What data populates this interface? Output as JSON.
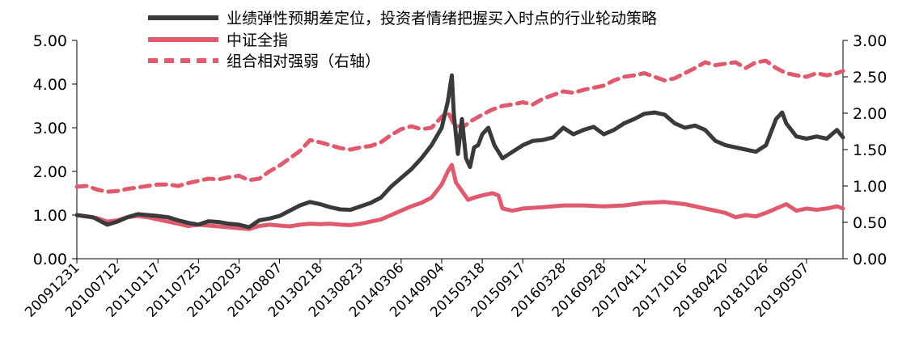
{
  "chart_data": {
    "type": "line",
    "title": "",
    "xlabel": "",
    "ylabel": "",
    "ylim": [
      0,
      5
    ],
    "y2lim": [
      0,
      3
    ],
    "yticks": [
      "0.00",
      "1.00",
      "2.00",
      "3.00",
      "4.00",
      "5.00"
    ],
    "y2ticks": [
      "0.00",
      "0.50",
      "1.00",
      "1.50",
      "2.00",
      "2.50",
      "3.00"
    ],
    "x_labels": [
      "20091231",
      "20100712",
      "20110117",
      "20110725",
      "20120203",
      "20120807",
      "20130218",
      "20130823",
      "20140306",
      "20140904",
      "20150318",
      "20150917",
      "20160328",
      "20160928",
      "20170411",
      "20171016",
      "20180420",
      "20181026",
      "20190507"
    ],
    "legend_position": "top",
    "series": [
      {
        "name": "业绩弹性预期差定位，投资者情绪把握买入时点的行业轮动策略",
        "axis": "left",
        "color": "#3a3a3a",
        "style": "solid",
        "values": [
          [
            0,
            1.0
          ],
          [
            0.8,
            0.95
          ],
          [
            1.5,
            0.78
          ],
          [
            2,
            0.85
          ],
          [
            2.5,
            0.95
          ],
          [
            3,
            1.02
          ],
          [
            3.5,
            1.0
          ],
          [
            4,
            0.98
          ],
          [
            4.5,
            0.95
          ],
          [
            5,
            0.88
          ],
          [
            5.5,
            0.82
          ],
          [
            6,
            0.78
          ],
          [
            6.5,
            0.86
          ],
          [
            7,
            0.84
          ],
          [
            7.5,
            0.8
          ],
          [
            8,
            0.78
          ],
          [
            8.5,
            0.72
          ],
          [
            9,
            0.88
          ],
          [
            9.5,
            0.92
          ],
          [
            10,
            0.98
          ],
          [
            10.5,
            1.1
          ],
          [
            11,
            1.22
          ],
          [
            11.5,
            1.3
          ],
          [
            12,
            1.25
          ],
          [
            12.5,
            1.18
          ],
          [
            13,
            1.13
          ],
          [
            13.5,
            1.12
          ],
          [
            14,
            1.2
          ],
          [
            14.5,
            1.28
          ],
          [
            15,
            1.4
          ],
          [
            15.5,
            1.65
          ],
          [
            16,
            1.85
          ],
          [
            16.5,
            2.05
          ],
          [
            17,
            2.3
          ],
          [
            17.5,
            2.6
          ],
          [
            18,
            3.0
          ],
          [
            18.3,
            3.6
          ],
          [
            18.5,
            4.2
          ],
          [
            18.6,
            3.3
          ],
          [
            18.8,
            2.4
          ],
          [
            19,
            3.2
          ],
          [
            19.2,
            2.3
          ],
          [
            19.4,
            2.1
          ],
          [
            19.6,
            2.55
          ],
          [
            19.8,
            2.6
          ],
          [
            20,
            2.85
          ],
          [
            20.3,
            3.0
          ],
          [
            20.6,
            2.6
          ],
          [
            21,
            2.3
          ],
          [
            21.5,
            2.45
          ],
          [
            22,
            2.6
          ],
          [
            22.5,
            2.7
          ],
          [
            23,
            2.72
          ],
          [
            23.5,
            2.78
          ],
          [
            24,
            3.0
          ],
          [
            24.5,
            2.85
          ],
          [
            25,
            2.95
          ],
          [
            25.5,
            3.02
          ],
          [
            26,
            2.85
          ],
          [
            26.5,
            2.95
          ],
          [
            27,
            3.1
          ],
          [
            27.5,
            3.2
          ],
          [
            28,
            3.32
          ],
          [
            28.5,
            3.35
          ],
          [
            29,
            3.3
          ],
          [
            29.5,
            3.1
          ],
          [
            30,
            3.0
          ],
          [
            30.5,
            3.05
          ],
          [
            31,
            2.95
          ],
          [
            31.5,
            2.7
          ],
          [
            32,
            2.6
          ],
          [
            32.5,
            2.55
          ],
          [
            33,
            2.5
          ],
          [
            33.5,
            2.45
          ],
          [
            34,
            2.6
          ],
          [
            34.5,
            3.2
          ],
          [
            34.8,
            3.35
          ],
          [
            35,
            3.1
          ],
          [
            35.5,
            2.8
          ],
          [
            36,
            2.75
          ],
          [
            36.5,
            2.8
          ],
          [
            37,
            2.75
          ],
          [
            37.5,
            2.95
          ],
          [
            37.8,
            2.78
          ]
        ]
      },
      {
        "name": "中证全指",
        "axis": "left",
        "color": "#e05a6e",
        "style": "solid",
        "values": [
          [
            0,
            1.0
          ],
          [
            1,
            0.93
          ],
          [
            1.5,
            0.85
          ],
          [
            2,
            0.88
          ],
          [
            2.5,
            0.95
          ],
          [
            3,
            0.98
          ],
          [
            3.5,
            0.95
          ],
          [
            4,
            0.9
          ],
          [
            4.5,
            0.85
          ],
          [
            5,
            0.8
          ],
          [
            5.5,
            0.75
          ],
          [
            6,
            0.78
          ],
          [
            6.5,
            0.76
          ],
          [
            7,
            0.74
          ],
          [
            7.5,
            0.72
          ],
          [
            8,
            0.7
          ],
          [
            8.5,
            0.68
          ],
          [
            9,
            0.75
          ],
          [
            9.5,
            0.78
          ],
          [
            10,
            0.76
          ],
          [
            10.5,
            0.74
          ],
          [
            11,
            0.78
          ],
          [
            11.5,
            0.8
          ],
          [
            12,
            0.79
          ],
          [
            12.5,
            0.8
          ],
          [
            13,
            0.78
          ],
          [
            13.5,
            0.77
          ],
          [
            14,
            0.8
          ],
          [
            14.5,
            0.85
          ],
          [
            15,
            0.9
          ],
          [
            15.5,
            1.0
          ],
          [
            16,
            1.1
          ],
          [
            16.5,
            1.2
          ],
          [
            17,
            1.28
          ],
          [
            17.5,
            1.4
          ],
          [
            18,
            1.7
          ],
          [
            18.3,
            2.0
          ],
          [
            18.5,
            2.15
          ],
          [
            18.7,
            1.75
          ],
          [
            19,
            1.55
          ],
          [
            19.3,
            1.35
          ],
          [
            19.6,
            1.4
          ],
          [
            20,
            1.45
          ],
          [
            20.5,
            1.5
          ],
          [
            20.8,
            1.45
          ],
          [
            21,
            1.15
          ],
          [
            21.5,
            1.1
          ],
          [
            22,
            1.15
          ],
          [
            23,
            1.18
          ],
          [
            24,
            1.22
          ],
          [
            25,
            1.22
          ],
          [
            26,
            1.2
          ],
          [
            27,
            1.22
          ],
          [
            28,
            1.28
          ],
          [
            29,
            1.3
          ],
          [
            30,
            1.25
          ],
          [
            31,
            1.15
          ],
          [
            32,
            1.05
          ],
          [
            32.5,
            0.95
          ],
          [
            33,
            1.0
          ],
          [
            33.5,
            0.97
          ],
          [
            34,
            1.05
          ],
          [
            34.5,
            1.15
          ],
          [
            35,
            1.25
          ],
          [
            35.5,
            1.1
          ],
          [
            36,
            1.15
          ],
          [
            36.5,
            1.12
          ],
          [
            37,
            1.15
          ],
          [
            37.5,
            1.2
          ],
          [
            37.8,
            1.15
          ]
        ]
      },
      {
        "name": "组合相对强弱（右轴）",
        "axis": "right",
        "color": "#e05a6e",
        "style": "dashed",
        "values": [
          [
            0,
            0.99
          ],
          [
            0.5,
            1.0
          ],
          [
            1,
            0.95
          ],
          [
            1.5,
            0.92
          ],
          [
            2,
            0.93
          ],
          [
            2.5,
            0.96
          ],
          [
            3,
            0.98
          ],
          [
            3.5,
            1.0
          ],
          [
            4,
            1.02
          ],
          [
            4.5,
            1.02
          ],
          [
            5,
            1.0
          ],
          [
            5.5,
            1.04
          ],
          [
            6,
            1.07
          ],
          [
            6.5,
            1.1
          ],
          [
            7,
            1.09
          ],
          [
            7.5,
            1.12
          ],
          [
            8,
            1.14
          ],
          [
            8.5,
            1.08
          ],
          [
            9,
            1.1
          ],
          [
            9.5,
            1.2
          ],
          [
            10,
            1.28
          ],
          [
            10.5,
            1.38
          ],
          [
            11,
            1.48
          ],
          [
            11.5,
            1.63
          ],
          [
            12,
            1.6
          ],
          [
            12.5,
            1.56
          ],
          [
            13,
            1.52
          ],
          [
            13.5,
            1.5
          ],
          [
            14,
            1.53
          ],
          [
            14.5,
            1.55
          ],
          [
            15,
            1.6
          ],
          [
            15.5,
            1.7
          ],
          [
            16,
            1.78
          ],
          [
            16.5,
            1.82
          ],
          [
            17,
            1.78
          ],
          [
            17.5,
            1.8
          ],
          [
            18,
            1.95
          ],
          [
            18.3,
            2.02
          ],
          [
            18.6,
            1.85
          ],
          [
            19,
            1.8
          ],
          [
            19.5,
            1.9
          ],
          [
            20,
            1.98
          ],
          [
            20.5,
            2.05
          ],
          [
            21,
            2.1
          ],
          [
            21.5,
            2.12
          ],
          [
            22,
            2.15
          ],
          [
            22.5,
            2.12
          ],
          [
            23,
            2.2
          ],
          [
            23.5,
            2.25
          ],
          [
            24,
            2.3
          ],
          [
            24.5,
            2.28
          ],
          [
            25,
            2.32
          ],
          [
            25.5,
            2.35
          ],
          [
            26,
            2.38
          ],
          [
            26.5,
            2.45
          ],
          [
            27,
            2.5
          ],
          [
            27.5,
            2.52
          ],
          [
            28,
            2.55
          ],
          [
            28.5,
            2.5
          ],
          [
            29,
            2.45
          ],
          [
            29.5,
            2.48
          ],
          [
            30,
            2.55
          ],
          [
            30.5,
            2.62
          ],
          [
            31,
            2.7
          ],
          [
            31.5,
            2.66
          ],
          [
            32,
            2.68
          ],
          [
            32.5,
            2.7
          ],
          [
            33,
            2.62
          ],
          [
            33.5,
            2.7
          ],
          [
            34,
            2.72
          ],
          [
            34.5,
            2.62
          ],
          [
            35,
            2.55
          ],
          [
            35.5,
            2.52
          ],
          [
            36,
            2.5
          ],
          [
            36.5,
            2.55
          ],
          [
            37,
            2.52
          ],
          [
            37.5,
            2.55
          ],
          [
            37.8,
            2.58
          ]
        ]
      }
    ]
  }
}
